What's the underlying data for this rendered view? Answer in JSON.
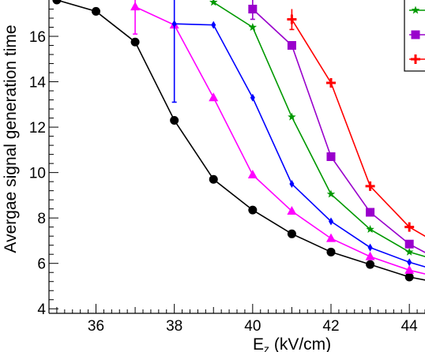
{
  "chart_data": {
    "type": "line",
    "xlabel": "E_z (kV/cm)",
    "xlabel_main": "E",
    "xlabel_sub": "z",
    "xlabel_rest": " (kV/cm)",
    "ylabel": "Avergae signal generation time",
    "xlim": [
      34.8,
      44.4
    ],
    "ylim": [
      3.8,
      17.6
    ],
    "xticks": [
      36,
      38,
      40,
      42,
      44
    ],
    "yticks": [
      4,
      6,
      8,
      10,
      12,
      14,
      16
    ],
    "series": [
      {
        "color": "#000000",
        "marker": "circle",
        "x": [
          34.6,
          35,
          36,
          37,
          38,
          39,
          40,
          41,
          42,
          43,
          44,
          44.6
        ],
        "y": [
          18.0,
          17.6,
          17.1,
          15.75,
          12.3,
          9.7,
          8.35,
          7.3,
          6.5,
          5.95,
          5.4,
          5.2
        ],
        "err_x": [
          35
        ],
        "err_y": [
          17.6
        ],
        "err_lo": [
          17.55
        ],
        "err_hi": [
          18.3
        ]
      },
      {
        "color": "#ff00ff",
        "marker": "triangle",
        "x": [
          37,
          38,
          39,
          40,
          41,
          42,
          43,
          44,
          44.6
        ],
        "y": [
          17.3,
          16.5,
          13.3,
          9.9,
          8.3,
          7.1,
          6.3,
          5.7,
          5.45
        ],
        "err_x": [
          37
        ],
        "err_y": [
          17.3
        ],
        "err_lo": [
          16.1
        ],
        "err_hi": [
          18.2
        ]
      },
      {
        "color": "#0000ff",
        "marker": "diamond",
        "x": [
          38,
          39,
          40,
          41,
          42,
          43,
          44,
          44.6
        ],
        "y": [
          16.55,
          16.5,
          13.3,
          9.5,
          7.85,
          6.7,
          6.05,
          5.75
        ],
        "err_x": [
          38
        ],
        "err_y": [
          16.55
        ],
        "err_lo": [
          13.1
        ],
        "err_hi": [
          18.2
        ]
      },
      {
        "color": "#009900",
        "marker": "star",
        "x": [
          39,
          40,
          41,
          42,
          43,
          44,
          44.6
        ],
        "y": [
          17.5,
          16.4,
          12.45,
          9.05,
          7.5,
          6.5,
          6.2
        ],
        "err_x": [],
        "err_y": [],
        "err_lo": [],
        "err_hi": []
      },
      {
        "color": "#9900cc",
        "marker": "square",
        "x": [
          40,
          41,
          42,
          43,
          44,
          44.6
        ],
        "y": [
          17.2,
          15.6,
          10.7,
          8.25,
          6.85,
          6.3
        ],
        "err_x": [
          40
        ],
        "err_y": [
          17.2
        ],
        "err_lo": [
          16.75
        ],
        "err_hi": [
          17.6
        ]
      },
      {
        "color": "#ff0000",
        "marker": "plus",
        "x": [
          41,
          42,
          43,
          44,
          44.6
        ],
        "y": [
          16.75,
          13.95,
          9.4,
          7.6,
          7.0
        ],
        "err_x": [
          41
        ],
        "err_y": [
          16.75
        ],
        "err_lo": [
          16.3
        ],
        "err_hi": [
          17.2
        ]
      }
    ],
    "legend_placement": "top-right"
  }
}
